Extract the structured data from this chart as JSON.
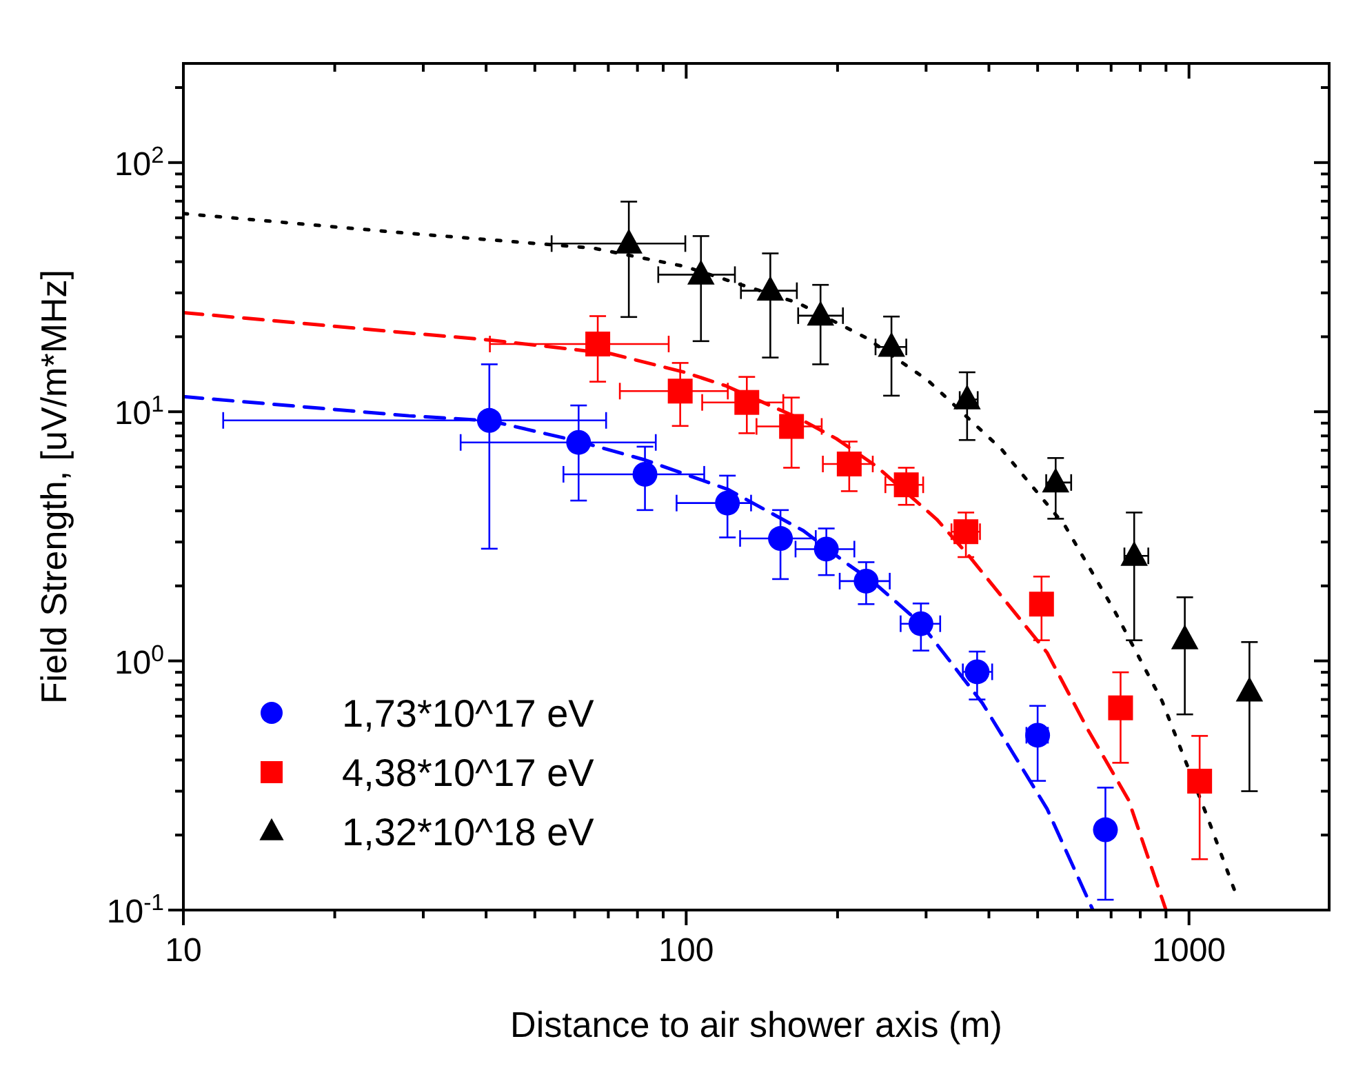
{
  "chart_data": {
    "type": "scatter",
    "xlabel": "Distance to air shower axis (m)",
    "ylabel": "Field Strength, [uV/m*MHz]",
    "log": "xy",
    "xlim": [
      10,
      1900
    ],
    "ylim": [
      0.1,
      250
    ],
    "xticks": [
      10,
      {
        "value": 20,
        "label": null
      },
      {
        "value": 30,
        "label": null
      },
      {
        "value": 40,
        "label": null
      },
      {
        "value": 50,
        "label": null
      },
      {
        "value": 60,
        "label": null
      },
      {
        "value": 70,
        "label": null
      },
      {
        "value": 80,
        "label": null
      },
      {
        "value": 90,
        "label": null
      },
      100,
      {
        "value": 200,
        "label": null
      },
      {
        "value": 300,
        "label": null
      },
      {
        "value": 400,
        "label": null
      },
      {
        "value": 500,
        "label": null
      },
      {
        "value": 600,
        "label": null
      },
      {
        "value": 700,
        "label": null
      },
      {
        "value": 800,
        "label": null
      },
      {
        "value": 900,
        "label": null
      },
      1000
    ],
    "yticks": [
      {
        "value": 0.1,
        "label": "10$^{-1}$"
      },
      {
        "value": 0.2,
        "label": null
      },
      {
        "value": 0.3,
        "label": null
      },
      {
        "value": 0.4,
        "label": null
      },
      {
        "value": 0.5,
        "label": null
      },
      {
        "value": 0.6,
        "label": null
      },
      {
        "value": 0.7,
        "label": null
      },
      {
        "value": 0.8,
        "label": null
      },
      {
        "value": 0.9,
        "label": null
      },
      {
        "value": 1,
        "label": "10$^{0}$"
      },
      {
        "value": 2,
        "label": null
      },
      {
        "value": 3,
        "label": null
      },
      {
        "value": 4,
        "label": null
      },
      {
        "value": 5,
        "label": null
      },
      {
        "value": 6,
        "label": null
      },
      {
        "value": 7,
        "label": null
      },
      {
        "value": 8,
        "label": null
      },
      {
        "value": 9,
        "label": null
      },
      {
        "value": 10,
        "label": "10$^{1}$"
      },
      {
        "value": 20,
        "label": null
      },
      {
        "value": 30,
        "label": null
      },
      {
        "value": 40,
        "label": null
      },
      {
        "value": 50,
        "label": null
      },
      {
        "value": 60,
        "label": null
      },
      {
        "value": 70,
        "label": null
      },
      {
        "value": 80,
        "label": null
      },
      {
        "value": 90,
        "label": null
      },
      {
        "value": 100,
        "label": "10$^{2}$"
      },
      {
        "value": 200,
        "label": null
      }
    ],
    "grid": false,
    "legend": "bottom left",
    "series": [
      {
        "name": "1,73*10^17 eV",
        "marker": "circle",
        "color": "#0000ff",
        "x": [
          40.6,
          61.1,
          82.8,
          120.8,
          154,
          190,
          228,
          293,
          379,
          500,
          682
        ],
        "values": [
          9.23,
          7.53,
          5.61,
          4.3,
          3.1,
          2.81,
          2.09,
          1.41,
          0.904,
          0.503,
          0.21
        ],
        "errors": [
          [
            2.82,
            15.5
          ],
          [
            4.4,
            10.6
          ],
          [
            4.03,
            7.24
          ],
          [
            3.13,
            5.54
          ],
          [
            2.13,
            4.03
          ],
          [
            2.21,
            3.4
          ],
          [
            1.69,
            2.49
          ],
          [
            1.1,
            1.7
          ],
          [
            0.7,
            1.09
          ],
          [
            0.33,
            0.66
          ],
          [
            0.11,
            0.31
          ]
        ],
        "xerrors": [
          [
            12,
            69.3
          ],
          [
            35.6,
            87
          ],
          [
            57,
            108.6
          ],
          [
            95.7,
            134.6
          ],
          [
            128,
            181
          ],
          [
            165,
            216
          ],
          [
            202,
            254
          ],
          [
            267,
            320
          ],
          [
            355,
            406
          ],
          [
            475,
            524
          ],
          null
        ]
      },
      {
        "name": "4,38*10^17 eV",
        "marker": "square",
        "color": "#ff0000",
        "x": [
          66.7,
          97.3,
          132,
          162,
          211,
          274,
          360,
          509,
          731,
          1050
        ],
        "values": [
          18.7,
          12.1,
          10.9,
          8.73,
          6.17,
          5.09,
          3.3,
          1.69,
          0.648,
          0.329
        ],
        "errors": [
          [
            13.2,
            24.2
          ],
          [
            8.77,
            15.7
          ],
          [
            8.2,
            13.8
          ],
          [
            5.96,
            11.4
          ],
          [
            4.8,
            7.59
          ],
          [
            4.23,
            5.96
          ],
          [
            2.61,
            3.94
          ],
          [
            1.21,
            2.18
          ],
          [
            0.39,
            0.9
          ],
          [
            0.16,
            0.5
          ]
        ],
        "xerrors": [
          [
            40.7,
            92.3
          ],
          [
            73.8,
            121
          ],
          [
            107.6,
            156
          ],
          [
            138,
            186
          ],
          [
            187,
            235
          ],
          [
            249,
            296
          ],
          [
            337,
            384
          ],
          [
            485,
            530
          ],
          null,
          null
        ]
      },
      {
        "name": "1,32*10^18 eV",
        "marker": "triangle",
        "color": "#000000",
        "x": [
          76.9,
          107,
          147,
          185,
          256,
          362,
          543,
          778,
          981,
          1319
        ],
        "values": [
          47.3,
          35.5,
          30.6,
          24.3,
          18.2,
          11.2,
          5.2,
          2.64,
          1.22,
          0.753
        ],
        "errors": [
          [
            24,
            69.7
          ],
          [
            19.2,
            50.7
          ],
          [
            16.5,
            43.2
          ],
          [
            15.5,
            32.3
          ],
          [
            11.6,
            24.1
          ],
          [
            7.7,
            14.4
          ],
          [
            3.72,
            6.52
          ],
          [
            1.21,
            3.94
          ],
          [
            0.61,
            1.8
          ],
          [
            0.3,
            1.19
          ]
        ],
        "xerrors": [
          [
            54,
            99.6
          ],
          [
            88,
            125
          ],
          [
            128.5,
            166
          ],
          [
            167,
            205
          ],
          [
            238,
            274
          ],
          [
            350,
            380
          ],
          [
            520,
            583
          ],
          [
            744,
            830
          ],
          null,
          null
        ]
      },
      {
        "type": "line",
        "marker": "none",
        "line_style": "dashed",
        "color": "#0000ff",
        "x": [
          10,
          28.1,
          40.7,
          61.2,
          82.9,
          121,
          171,
          211,
          235,
          293,
          388,
          522,
          644
        ],
        "values": [
          11.5,
          9.63,
          9.2,
          7.6,
          6.4,
          4.88,
          3.33,
          2.42,
          2.08,
          1.41,
          0.678,
          0.255,
          0.1
        ]
      },
      {
        "type": "line",
        "marker": "none",
        "line_style": "dashed",
        "color": "#ff0000",
        "x": [
          10,
          28.1,
          40.7,
          70.8,
          99.3,
          120,
          167,
          199,
          239,
          315,
          365,
          522,
          631,
          758,
          900
        ],
        "values": [
          25,
          20.7,
          19.4,
          17.1,
          14.4,
          12.7,
          9.44,
          7.79,
          6.04,
          3.7,
          2.64,
          1.08,
          0.525,
          0.277,
          0.1
        ]
      },
      {
        "type": "line",
        "marker": "none",
        "line_style": "dotted",
        "color": "#000000",
        "x": [
          10,
          28.1,
          65.2,
          99.3,
          167,
          228,
          302,
          424,
          567,
          712,
          884,
          1090,
          1230
        ],
        "values": [
          62.4,
          52,
          45.4,
          38.3,
          27.3,
          19.8,
          13.4,
          7.06,
          3.48,
          1.58,
          0.69,
          0.234,
          0.121
        ]
      }
    ]
  }
}
